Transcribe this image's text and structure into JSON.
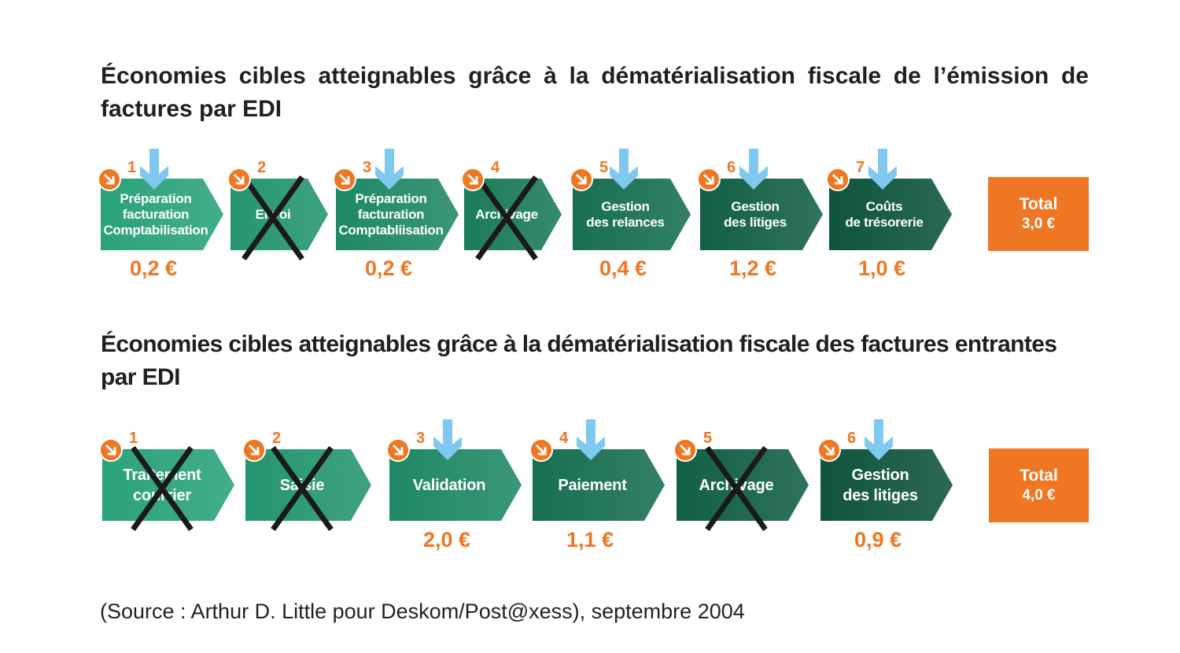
{
  "colors": {
    "accent": "#ef7622",
    "arrow": "#7fc8f0",
    "cross": "#1a1a1a",
    "steps": [
      "#2aa27a",
      "#25956f",
      "#1f8864",
      "#1b7b59",
      "#176f4f",
      "#126044",
      "#0e543b"
    ]
  },
  "icons": {
    "badge": "arrow-down-right-icon",
    "down": "arrow-down-icon",
    "crossed": "cross-icon"
  },
  "diagrams": [
    {
      "title": "Économies cibles atteignables grâce à la dématérialisation fiscale de l’émission de factures par EDI",
      "steps": [
        {
          "number": "1",
          "label": "Préparation\nfacturation\nComptabilisation",
          "value": "0,2 €",
          "crossed": false
        },
        {
          "number": "2",
          "label": "Envoi",
          "value": "",
          "crossed": true
        },
        {
          "number": "3",
          "label": "Préparation\nfacturation\nComptabliisation",
          "value": "0,2 €",
          "crossed": false
        },
        {
          "number": "4",
          "label": "Archivage",
          "value": "",
          "crossed": true
        },
        {
          "number": "5",
          "label": "Gestion\ndes relances",
          "value": "0,4 €",
          "crossed": false
        },
        {
          "number": "6",
          "label": "Gestion\ndes litiges",
          "value": "1,2 €",
          "crossed": false
        },
        {
          "number": "7",
          "label": "Coûts\nde trésorerie",
          "value": "1,0 €",
          "crossed": false
        }
      ],
      "total": {
        "label": "Total",
        "value": "3,0 €"
      }
    },
    {
      "title": "Économies cibles atteignables grâce à la dématérialisation fiscale des factures entrantes par EDI",
      "steps": [
        {
          "number": "1",
          "label": "Traitement\ncourrier",
          "value": "",
          "crossed": true
        },
        {
          "number": "2",
          "label": "Saisie",
          "value": "",
          "crossed": true
        },
        {
          "number": "3",
          "label": "Validation",
          "value": "2,0 €",
          "crossed": false
        },
        {
          "number": "4",
          "label": "Paiement",
          "value": "1,1 €",
          "crossed": false
        },
        {
          "number": "5",
          "label": "Archivage",
          "value": "",
          "crossed": true
        },
        {
          "number": "6",
          "label": "Gestion\ndes litiges",
          "value": "0,9 €",
          "crossed": false
        }
      ],
      "total": {
        "label": "Total",
        "value": "4,0 €"
      }
    }
  ],
  "source": "(Source : Arthur D. Little pour Deskom/Post@xess), septembre 2004"
}
